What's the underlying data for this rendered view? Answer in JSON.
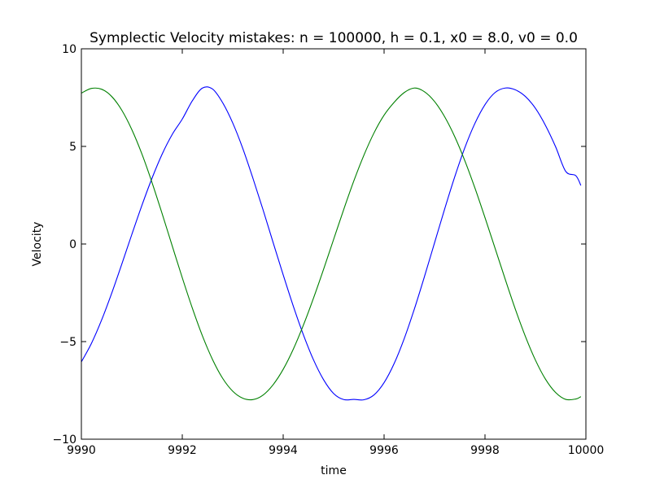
{
  "chart_data": {
    "type": "line",
    "title": "Symplectic Velocity mistakes: n = 100000,  h = 0.1,  x0 = 8.0,  v0 = 0.0",
    "xlabel": "time",
    "ylabel": "Velocity",
    "xlim": [
      9990,
      10000
    ],
    "ylim": [
      -10,
      10
    ],
    "xticks": [
      9990,
      9992,
      9994,
      9996,
      9998,
      10000
    ],
    "xtick_labels": [
      "9990",
      "9992",
      "9994",
      "9996",
      "9998",
      "10000"
    ],
    "yticks": [
      -10,
      -5,
      0,
      5,
      10
    ],
    "ytick_labels": [
      "−10",
      "−5",
      "0",
      "5",
      "10"
    ],
    "grid": false,
    "series": [
      {
        "color": "#0000ff",
        "x": [
          9990.0,
          9990.2,
          9990.4,
          9990.6,
          9990.8,
          9991.0,
          9991.2,
          9991.4,
          9991.6,
          9991.8,
          9992.0,
          9992.2,
          9992.4,
          9992.6,
          9992.8,
          9993.0,
          9993.2,
          9993.4,
          9993.6,
          9993.8,
          9994.0,
          9994.2,
          9994.4,
          9994.6,
          9994.8,
          9995.0,
          9995.2,
          9995.4,
          9995.6,
          9995.8,
          9996.0,
          9996.2,
          9996.4,
          9996.6,
          9996.8,
          9997.0,
          9997.2,
          9997.4,
          9997.6,
          9997.8,
          9998.0,
          9998.2,
          9998.4,
          9998.6,
          9998.8,
          9999.0,
          9999.2,
          9999.4,
          9999.6,
          9999.8,
          9999.9
        ],
        "y": [
          -6.04,
          -5.09,
          -3.9,
          -2.53,
          -1.04,
          0.49,
          1.98,
          3.37,
          4.6,
          5.61,
          6.4,
          7.34,
          7.99,
          7.94,
          7.24,
          6.2,
          4.89,
          3.37,
          1.76,
          0.08,
          -1.58,
          -3.18,
          -4.65,
          -5.93,
          -6.95,
          -7.66,
          -7.97,
          -7.96,
          -7.98,
          -7.73,
          -7.1,
          -6.12,
          -4.84,
          -3.33,
          -1.67,
          0.06,
          1.79,
          3.44,
          4.93,
          6.18,
          7.14,
          7.76,
          7.99,
          7.9,
          7.56,
          6.95,
          6.07,
          4.98,
          3.72,
          3.5,
          3.0
        ]
      },
      {
        "color": "#008000",
        "x": [
          9990.0,
          9990.2,
          9990.4,
          9990.6,
          9990.8,
          9991.0,
          9991.2,
          9991.4,
          9991.6,
          9991.8,
          9992.0,
          9992.2,
          9992.4,
          9992.6,
          9992.8,
          9993.0,
          9993.2,
          9993.4,
          9993.6,
          9993.8,
          9994.0,
          9994.2,
          9994.4,
          9994.6,
          9994.8,
          9995.0,
          9995.2,
          9995.4,
          9995.6,
          9995.8,
          9996.0,
          9996.2,
          9996.4,
          9996.6,
          9996.8,
          9997.0,
          9997.2,
          9997.4,
          9997.6,
          9997.8,
          9998.0,
          9998.2,
          9998.4,
          9998.6,
          9998.8,
          9999.0,
          9999.2,
          9999.4,
          9999.6,
          9999.8,
          9999.9
        ],
        "y": [
          7.73,
          7.97,
          7.93,
          7.56,
          6.86,
          5.86,
          4.61,
          3.15,
          1.56,
          -0.09,
          -1.73,
          -3.29,
          -4.71,
          -5.92,
          -6.88,
          -7.54,
          -7.9,
          -7.97,
          -7.74,
          -7.21,
          -6.42,
          -5.39,
          -4.16,
          -2.78,
          -1.3,
          0.24,
          1.77,
          3.23,
          4.55,
          5.69,
          6.6,
          7.26,
          7.76,
          7.99,
          7.8,
          7.3,
          6.52,
          5.5,
          4.27,
          2.87,
          1.35,
          -0.22,
          -1.8,
          -3.33,
          -4.73,
          -5.95,
          -6.93,
          -7.61,
          -7.96,
          -7.94,
          -7.82
        ]
      }
    ]
  }
}
